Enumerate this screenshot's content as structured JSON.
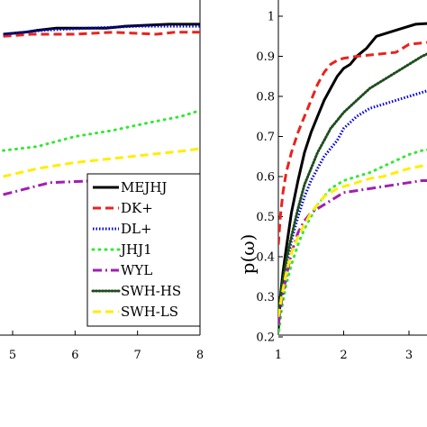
{
  "chart_data": [
    {
      "type": "line",
      "panel": "left",
      "xlim": [
        4.85,
        8.0
      ],
      "ylim": [
        0.2,
        1.05
      ],
      "x_ticks": [
        "5",
        "6",
        "7",
        "8"
      ],
      "y_ticks": [],
      "grid": false,
      "legend_position": "bottom-right",
      "legend": [
        "MEJHJ",
        "DK+",
        "DL+",
        "JHJ1",
        "WYL",
        "SWH-HS",
        "SWH-LS"
      ],
      "series": [
        {
          "name": "MEJHJ",
          "color": "#000000",
          "style": "solid",
          "points": [
            [
              4.85,
              0.955
            ],
            [
              5.2,
              0.96
            ],
            [
              5.4,
              0.965
            ],
            [
              5.7,
              0.97
            ],
            [
              6.5,
              0.97
            ],
            [
              6.8,
              0.975
            ],
            [
              7.5,
              0.98
            ],
            [
              8,
              0.98
            ]
          ]
        },
        {
          "name": "DK+",
          "color": "#e8231e",
          "style": "dashed",
          "points": [
            [
              4.85,
              0.95
            ],
            [
              5.3,
              0.955
            ],
            [
              6.0,
              0.955
            ],
            [
              6.6,
              0.96
            ],
            [
              7.3,
              0.955
            ],
            [
              7.6,
              0.96
            ],
            [
              8,
              0.96
            ]
          ]
        },
        {
          "name": "DL+",
          "color": "#0000e0",
          "style": "dotted",
          "points": [
            [
              4.85,
              0.955
            ],
            [
              5.5,
              0.965
            ],
            [
              6.2,
              0.97
            ],
            [
              7.0,
              0.975
            ],
            [
              8,
              0.975
            ]
          ]
        },
        {
          "name": "JHJ1",
          "color": "#33e833",
          "style": "dots",
          "points": [
            [
              4.85,
              0.665
            ],
            [
              5.4,
              0.675
            ],
            [
              6.0,
              0.7
            ],
            [
              6.6,
              0.715
            ],
            [
              7.2,
              0.735
            ],
            [
              7.7,
              0.75
            ],
            [
              8,
              0.765
            ]
          ]
        },
        {
          "name": "WYL",
          "color": "#a020b0",
          "style": "dashdot",
          "points": [
            [
              4.85,
              0.555
            ],
            [
              5.1,
              0.565
            ],
            [
              5.6,
              0.585
            ],
            [
              6.4,
              0.59
            ],
            [
              7.2,
              0.595
            ],
            [
              8,
              0.6
            ]
          ]
        },
        {
          "name": "SWH-HS",
          "color": "#1f4d1f",
          "style": "dense-dots",
          "points": []
        },
        {
          "name": "SWH-LS",
          "color": "#ffee00",
          "style": "dashed",
          "points": [
            [
              4.85,
              0.6
            ],
            [
              5.4,
              0.62
            ],
            [
              6.0,
              0.635
            ],
            [
              6.6,
              0.645
            ],
            [
              7.2,
              0.655
            ],
            [
              7.8,
              0.665
            ],
            [
              8,
              0.67
            ]
          ]
        }
      ]
    },
    {
      "type": "line",
      "panel": "right",
      "xlim": [
        1,
        3.62
      ],
      "ylim": [
        0.2,
        1.05
      ],
      "x_ticks": [
        "1",
        "2",
        "3"
      ],
      "y_ticks": [
        "0.2",
        "0.3",
        "0.4",
        "0.5",
        "0.6",
        "0.7",
        "0.8",
        "0.9",
        "1"
      ],
      "ylabel": "p(ω)",
      "grid": false,
      "series": [
        {
          "name": "MEJHJ",
          "color": "#000000",
          "style": "solid",
          "points": [
            [
              1,
              0.22
            ],
            [
              1.03,
              0.3
            ],
            [
              1.07,
              0.36
            ],
            [
              1.12,
              0.42
            ],
            [
              1.2,
              0.51
            ],
            [
              1.3,
              0.59
            ],
            [
              1.4,
              0.66
            ],
            [
              1.5,
              0.71
            ],
            [
              1.6,
              0.75
            ],
            [
              1.7,
              0.79
            ],
            [
              1.8,
              0.82
            ],
            [
              1.9,
              0.85
            ],
            [
              2.0,
              0.87
            ],
            [
              2.1,
              0.88
            ],
            [
              2.2,
              0.9
            ],
            [
              2.35,
              0.92
            ],
            [
              2.5,
              0.95
            ],
            [
              2.7,
              0.96
            ],
            [
              2.9,
              0.97
            ],
            [
              3.1,
              0.98
            ],
            [
              3.62,
              0.985
            ]
          ]
        },
        {
          "name": "DK+",
          "color": "#e8231e",
          "style": "dashed",
          "points": [
            [
              1,
              0.43
            ],
            [
              1.03,
              0.5
            ],
            [
              1.07,
              0.56
            ],
            [
              1.12,
              0.61
            ],
            [
              1.2,
              0.66
            ],
            [
              1.3,
              0.71
            ],
            [
              1.4,
              0.75
            ],
            [
              1.5,
              0.79
            ],
            [
              1.6,
              0.83
            ],
            [
              1.7,
              0.86
            ],
            [
              1.8,
              0.88
            ],
            [
              1.9,
              0.89
            ],
            [
              2.0,
              0.895
            ],
            [
              2.2,
              0.9
            ],
            [
              2.5,
              0.905
            ],
            [
              2.8,
              0.91
            ],
            [
              3.0,
              0.93
            ],
            [
              3.3,
              0.935
            ],
            [
              3.62,
              0.935
            ]
          ]
        },
        {
          "name": "DL+",
          "color": "#0000e0",
          "style": "dotted",
          "points": [
            [
              1,
              0.25
            ],
            [
              1.05,
              0.3
            ],
            [
              1.12,
              0.38
            ],
            [
              1.2,
              0.44
            ],
            [
              1.3,
              0.5
            ],
            [
              1.4,
              0.55
            ],
            [
              1.5,
              0.59
            ],
            [
              1.6,
              0.62
            ],
            [
              1.7,
              0.65
            ],
            [
              1.8,
              0.67
            ],
            [
              1.9,
              0.69
            ],
            [
              2.0,
              0.72
            ],
            [
              2.2,
              0.75
            ],
            [
              2.4,
              0.77
            ],
            [
              2.6,
              0.78
            ],
            [
              2.8,
              0.79
            ],
            [
              3.0,
              0.8
            ],
            [
              3.3,
              0.815
            ],
            [
              3.5,
              0.83
            ],
            [
              3.62,
              0.84
            ]
          ]
        },
        {
          "name": "JHJ1",
          "color": "#33e833",
          "style": "dots",
          "points": [
            [
              1,
              0.2
            ],
            [
              1.05,
              0.27
            ],
            [
              1.12,
              0.33
            ],
            [
              1.2,
              0.38
            ],
            [
              1.3,
              0.43
            ],
            [
              1.4,
              0.47
            ],
            [
              1.5,
              0.5
            ],
            [
              1.6,
              0.53
            ],
            [
              1.7,
              0.55
            ],
            [
              1.8,
              0.57
            ],
            [
              1.9,
              0.58
            ],
            [
              2.0,
              0.59
            ],
            [
              2.2,
              0.6
            ],
            [
              2.4,
              0.61
            ],
            [
              2.6,
              0.625
            ],
            [
              2.8,
              0.64
            ],
            [
              3.0,
              0.655
            ],
            [
              3.2,
              0.665
            ],
            [
              3.4,
              0.67
            ],
            [
              3.62,
              0.67
            ]
          ]
        },
        {
          "name": "WYL",
          "color": "#a020b0",
          "style": "dashdot",
          "points": [
            [
              1,
              0.23
            ],
            [
              1.05,
              0.29
            ],
            [
              1.12,
              0.35
            ],
            [
              1.2,
              0.41
            ],
            [
              1.3,
              0.46
            ],
            [
              1.4,
              0.49
            ],
            [
              1.5,
              0.51
            ],
            [
              1.6,
              0.52
            ],
            [
              1.7,
              0.53
            ],
            [
              1.8,
              0.54
            ],
            [
              1.9,
              0.55
            ],
            [
              2.0,
              0.56
            ],
            [
              2.2,
              0.565
            ],
            [
              2.4,
              0.57
            ],
            [
              2.6,
              0.575
            ],
            [
              2.8,
              0.58
            ],
            [
              3.0,
              0.585
            ],
            [
              3.2,
              0.59
            ],
            [
              3.62,
              0.59
            ]
          ]
        },
        {
          "name": "SWH-HS",
          "color": "#1f4d1f",
          "style": "dense-dots",
          "points": [
            [
              1,
              0.26
            ],
            [
              1.05,
              0.32
            ],
            [
              1.12,
              0.39
            ],
            [
              1.2,
              0.45
            ],
            [
              1.3,
              0.52
            ],
            [
              1.4,
              0.58
            ],
            [
              1.5,
              0.62
            ],
            [
              1.6,
              0.66
            ],
            [
              1.7,
              0.69
            ],
            [
              1.8,
              0.72
            ],
            [
              1.9,
              0.74
            ],
            [
              2.0,
              0.76
            ],
            [
              2.2,
              0.79
            ],
            [
              2.4,
              0.82
            ],
            [
              2.6,
              0.84
            ],
            [
              2.8,
              0.86
            ],
            [
              3.0,
              0.88
            ],
            [
              3.2,
              0.9
            ],
            [
              3.4,
              0.915
            ],
            [
              3.62,
              0.925
            ]
          ]
        },
        {
          "name": "SWH-LS",
          "color": "#ffee00",
          "style": "dashed",
          "points": [
            [
              1,
              0.25
            ],
            [
              1.05,
              0.3
            ],
            [
              1.12,
              0.36
            ],
            [
              1.2,
              0.41
            ],
            [
              1.3,
              0.45
            ],
            [
              1.4,
              0.48
            ],
            [
              1.5,
              0.51
            ],
            [
              1.6,
              0.53
            ],
            [
              1.7,
              0.55
            ],
            [
              1.8,
              0.56
            ],
            [
              1.9,
              0.57
            ],
            [
              2.0,
              0.575
            ],
            [
              2.2,
              0.585
            ],
            [
              2.4,
              0.595
            ],
            [
              2.6,
              0.6
            ],
            [
              2.8,
              0.61
            ],
            [
              3.0,
              0.62
            ],
            [
              3.3,
              0.63
            ],
            [
              3.62,
              0.64
            ]
          ]
        }
      ]
    }
  ]
}
